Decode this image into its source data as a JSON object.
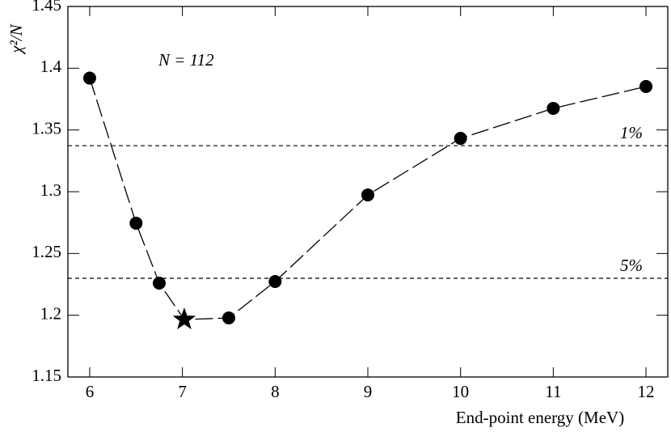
{
  "chart_data": {
    "type": "line",
    "x_label": "End-point energy (MeV)",
    "y_label": "χ²/N",
    "annotation": "N = 112",
    "x": [
      6,
      6.5,
      6.75,
      7.02,
      7.5,
      8,
      9,
      10,
      11,
      12
    ],
    "series": [
      {
        "color": "#000000",
        "values": [
          1.392,
          1.2745,
          1.226,
          1.1965,
          1.1978,
          1.2273,
          1.2974,
          1.3432,
          1.3675,
          1.3852
        ],
        "markers": [
          "circle",
          "circle",
          "circle",
          "star",
          "circle",
          "circle",
          "circle",
          "circle",
          "circle",
          "circle"
        ]
      }
    ],
    "reference_lines": [
      {
        "label": "1%",
        "value": 1.3373
      },
      {
        "label": "5%",
        "value": 1.2299
      }
    ],
    "xlim": [
      5.765,
      12.235
    ],
    "ylim": [
      1.15,
      1.45
    ],
    "xticks": [
      6,
      7,
      8,
      9,
      10,
      11,
      12
    ],
    "yticks": [
      1.15,
      1.2,
      1.25,
      1.3,
      1.35,
      1.4,
      1.45
    ]
  }
}
